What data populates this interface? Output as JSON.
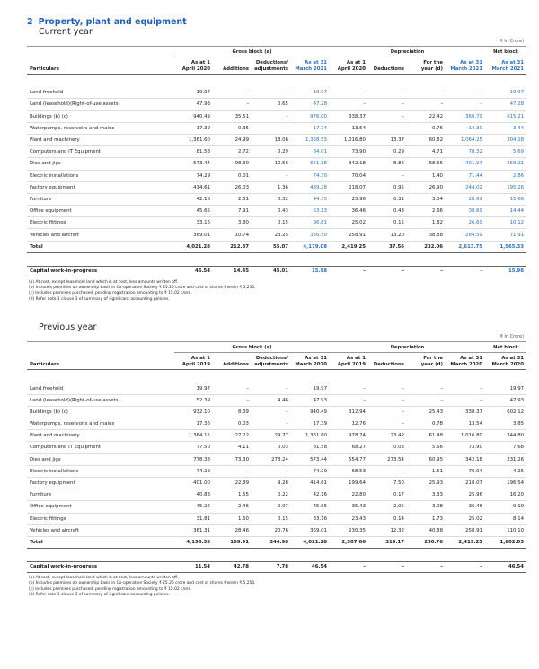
{
  "section": {
    "number": "2",
    "title": "Property, plant and equipment"
  },
  "tables": [
    {
      "heading": "Current year",
      "unit": "(₹ In Crore)",
      "group_headers": [
        "Gross block (a)",
        "Depreciation",
        "Net block"
      ],
      "column_headers": [
        "Particulars",
        "As at 1 April 2020",
        "Additions",
        "Deductions/ adjustments",
        "As at 31 March 2021",
        "As at 1 April 2020",
        "Deductions",
        "For the year (d)",
        "As at 31 March 2021",
        "As at 31 March 2021"
      ],
      "highlight_columns": [
        3,
        7,
        8
      ],
      "highlight_color": "#2c6fb7",
      "rows": [
        [
          "Land freehold",
          "19.97",
          "–",
          "–",
          "19.97",
          "–",
          "–",
          "–",
          "–",
          "19.97"
        ],
        [
          "Land (leasehold)(Right-of-use assets)",
          "47.93",
          "–",
          "0.65",
          "47.28",
          "–",
          "–",
          "–",
          "–",
          "47.28"
        ],
        [
          "Buildings (b) (c)",
          "940.49",
          "35.51",
          "–",
          "976.00",
          "338.37",
          "–",
          "22.42",
          "360.79",
          "615.21"
        ],
        [
          "Waterpumps, reservoirs and mains",
          "17.39",
          "0.35",
          "–",
          "17.74",
          "13.54",
          "–",
          "0.76",
          "14.30",
          "3.44"
        ],
        [
          "Plant and machinery",
          "1,361.60",
          "24.99",
          "18.06",
          "1,368.53",
          "1,016.80",
          "13.37",
          "60.82",
          "1,064.25",
          "304.28"
        ],
        [
          "Computers and IT Equipment",
          "81.58",
          "2.72",
          "0.29",
          "84.01",
          "73.90",
          "0.29",
          "4.71",
          "78.32",
          "5.69"
        ],
        [
          "Dies and jigs",
          "573.44",
          "98.30",
          "10.56",
          "661.18",
          "342.18",
          "8.86",
          "68.65",
          "401.97",
          "259.21"
        ],
        [
          "Electric installations",
          "74.29",
          "0.01",
          "–",
          "74.30",
          "70.04",
          "–",
          "1.40",
          "71.44",
          "2.86"
        ],
        [
          "Factory equipment",
          "414.61",
          "26.03",
          "1.36",
          "439.28",
          "218.07",
          "0.95",
          "26.90",
          "244.02",
          "195.26"
        ],
        [
          "Furniture",
          "42.16",
          "2.51",
          "0.32",
          "44.35",
          "25.96",
          "0.31",
          "3.04",
          "28.69",
          "15.66"
        ],
        [
          "Office equipment",
          "45.65",
          "7.91",
          "0.43",
          "53.13",
          "36.46",
          "0.43",
          "2.66",
          "38.69",
          "14.44"
        ],
        [
          "Electric fittings",
          "33.16",
          "3.80",
          "0.15",
          "36.81",
          "25.02",
          "0.15",
          "1.82",
          "26.69",
          "10.12"
        ],
        [
          "Vehicles and aircraft",
          "369.01",
          "10.74",
          "23.25",
          "356.50",
          "258.91",
          "13.20",
          "38.88",
          "284.59",
          "71.91"
        ]
      ],
      "total": [
        "Total",
        "4,021.28",
        "212.87",
        "55.07",
        "4,179.08",
        "2,419.25",
        "37.56",
        "232.06",
        "2,613.75",
        "1,565.33"
      ],
      "capital_wip": [
        "Capital work-in-progress",
        "46.54",
        "14.45",
        "45.01",
        "15.98",
        "–",
        "–",
        "–",
        "–",
        "15.98"
      ],
      "notes": [
        "(a)  At cost, except leasehold land which is at cost, less amounts written off.",
        "(b)  Includes premises on ownership basis in Co-operative Society ₹ 25.26 crore and cost of shares therein ₹ 5,250.",
        "(c)  Includes premises purchased, pending registration amounting to ₹ 15.02 crore.",
        "(d)  Refer note 1 clause 3 of summary of significant accounting policies."
      ]
    },
    {
      "heading": "Previous year",
      "unit": "(₹ In Crore)",
      "group_headers": [
        "Gross block (a)",
        "Depreciation",
        "Net block"
      ],
      "column_headers": [
        "Particulars",
        "As at 1 April 2019",
        "Additions",
        "Deductions/ adjustments",
        "As at 31 March 2020",
        "As at 1 April 2019",
        "Deductions",
        "For the year (d)",
        "As at 31 March 2020",
        "As at 31 March 2020"
      ],
      "rows": [
        [
          "Land freehold",
          "19.97",
          "–",
          "–",
          "19.97",
          "–",
          "–",
          "–",
          "–",
          "19.97"
        ],
        [
          "Land (leasehold)(Right-of-use assets)",
          "52.39",
          "–",
          "4.46",
          "47.93",
          "–",
          "–",
          "–",
          "–",
          "47.93"
        ],
        [
          "Buildings (b) (c)",
          "932.10",
          "8.39",
          "–",
          "940.49",
          "312.94",
          "–",
          "25.43",
          "338.37",
          "602.12"
        ],
        [
          "Waterpumps, reservoirs and mains",
          "17.36",
          "0.03",
          "–",
          "17.39",
          "12.76",
          "–",
          "0.78",
          "13.54",
          "3.85"
        ],
        [
          "Plant and machinery",
          "1,364.15",
          "27.22",
          "29.77",
          "1,361.60",
          "978.74",
          "23.42",
          "61.48",
          "1,016.80",
          "344.80"
        ],
        [
          "Computers and IT Equipment",
          "77.50",
          "4.11",
          "0.03",
          "81.58",
          "68.27",
          "0.03",
          "5.66",
          "73.90",
          "7.68"
        ],
        [
          "Dies and jigs",
          "778.38",
          "73.30",
          "278.24",
          "573.44",
          "554.77",
          "273.54",
          "60.95",
          "342.18",
          "231.26"
        ],
        [
          "Electric installations",
          "74.29",
          "–",
          "–",
          "74.29",
          "68.53",
          "–",
          "1.51",
          "70.04",
          "4.25"
        ],
        [
          "Factory equipment",
          "401.00",
          "22.89",
          "9.28",
          "414.61",
          "199.64",
          "7.50",
          "25.93",
          "218.07",
          "196.54"
        ],
        [
          "Furniture",
          "40.83",
          "1.55",
          "0.22",
          "42.16",
          "22.80",
          "0.17",
          "3.33",
          "25.96",
          "16.20"
        ],
        [
          "Office equipment",
          "45.26",
          "2.46",
          "2.07",
          "45.65",
          "35.43",
          "2.05",
          "3.08",
          "36.46",
          "9.19"
        ],
        [
          "Electric fittings",
          "31.81",
          "1.50",
          "0.15",
          "33.16",
          "23.43",
          "0.14",
          "1.73",
          "25.02",
          "8.14"
        ],
        [
          "Vehicles and aircraft",
          "361.31",
          "28.46",
          "20.76",
          "369.01",
          "230.35",
          "12.32",
          "40.88",
          "258.91",
          "110.10"
        ]
      ],
      "total": [
        "Total",
        "4,196.35",
        "169.91",
        "344.98",
        "4,021.28",
        "2,507.66",
        "319.17",
        "230.76",
        "2,419.25",
        "1,602.03"
      ],
      "capital_wip": [
        "Capital work-in-progress",
        "11.54",
        "42.78",
        "7.78",
        "46.54",
        "–",
        "–",
        "–",
        "–",
        "46.54"
      ],
      "notes": [
        "(a)  At cost, except leasehold land which is at cost, less amounts written off.",
        "(b)  Includes premises on ownership basis in Co-operative Society ₹ 25.26 crore and cost of shares therein ₹ 5,250.",
        "(c)  Includes premises purchased, pending registration amounting to ₹ 15.02 crore.",
        "(d)  Refer note 1 clause 3 of summary of significant accounting policies."
      ]
    }
  ]
}
